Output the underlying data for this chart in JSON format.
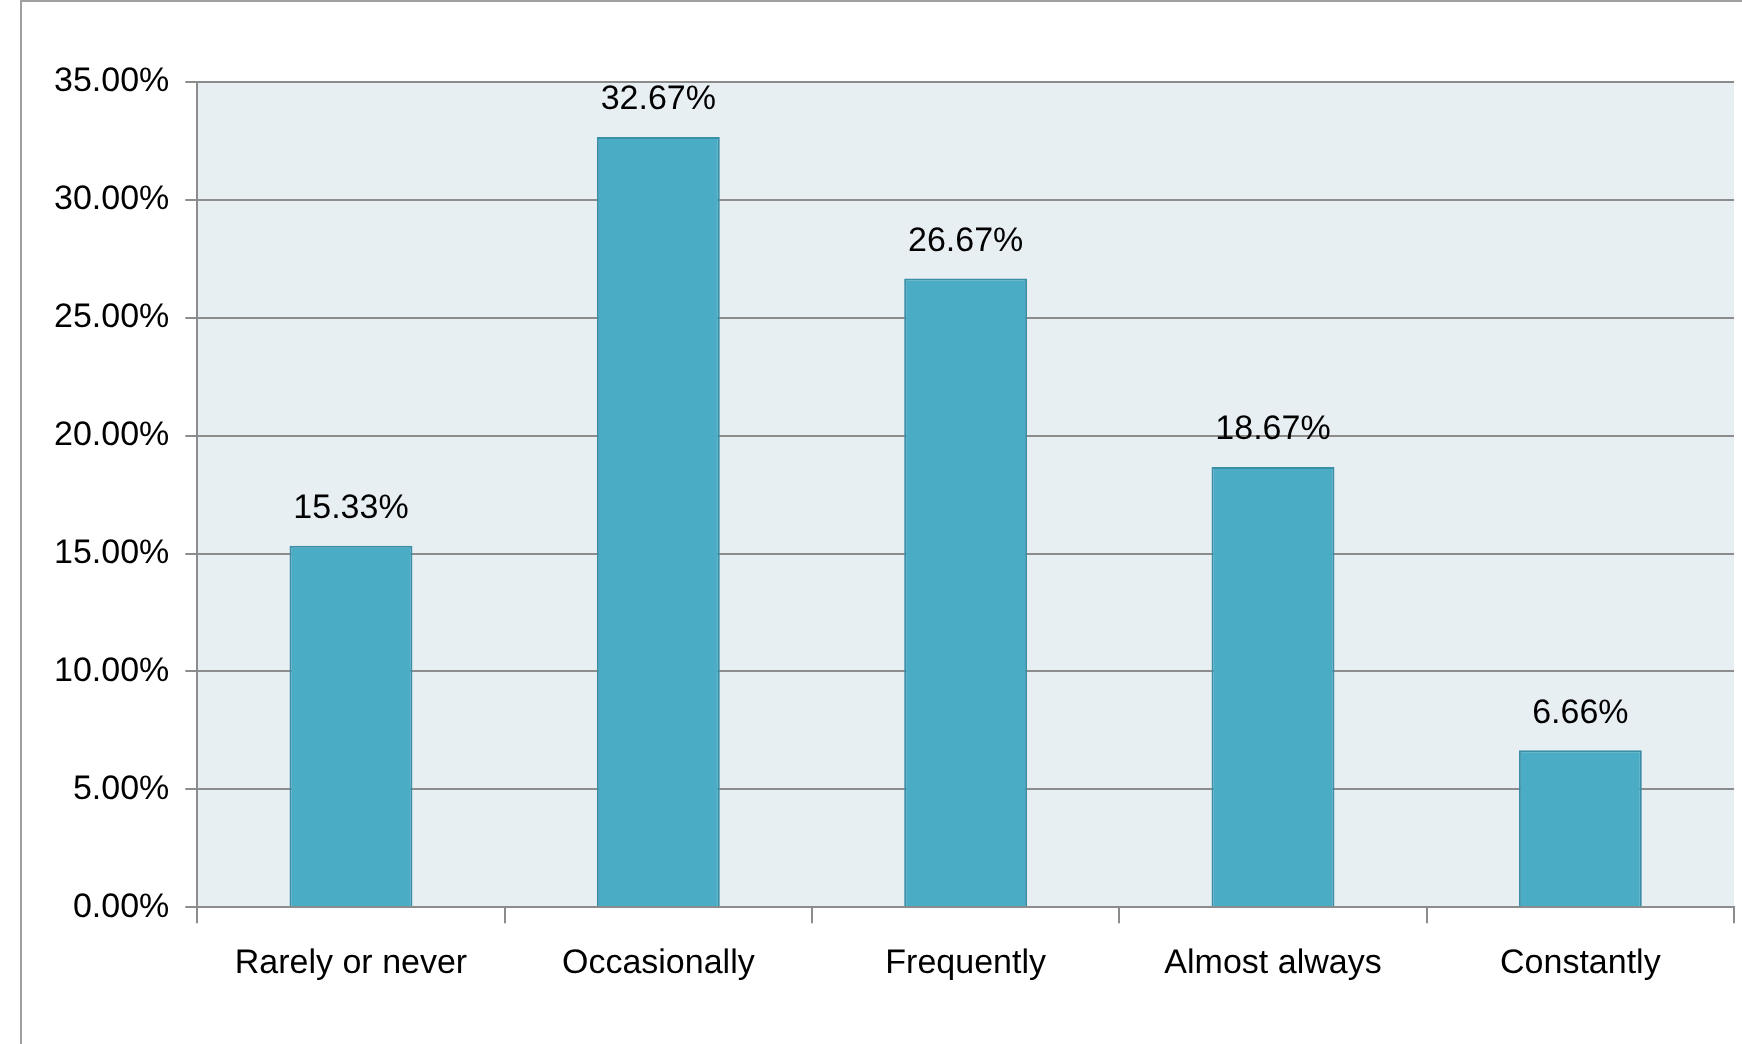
{
  "chart_data": {
    "type": "bar",
    "categories": [
      "Rarely or never",
      "Occasionally",
      "Frequently",
      "Almost always",
      "Constantly"
    ],
    "values": [
      15.33,
      32.67,
      26.67,
      18.67,
      6.66
    ],
    "color": "#4bacc6",
    "value_labels": [
      "15.33%",
      "32.67%",
      "26.67%",
      "18.67%",
      "6.66%"
    ],
    "ylim": [
      0,
      35
    ],
    "yticks": [
      {
        "value": 0,
        "label": "0.00%"
      },
      {
        "value": 5,
        "label": "5.00%"
      },
      {
        "value": 10,
        "label": "10.00%"
      },
      {
        "value": 15,
        "label": "15.00%"
      },
      {
        "value": 20,
        "label": "20.00%"
      },
      {
        "value": 25,
        "label": "25.00%"
      },
      {
        "value": 30,
        "label": "30.00%"
      },
      {
        "value": 35,
        "label": "35.00%"
      }
    ],
    "grid": "y",
    "legend": false
  }
}
